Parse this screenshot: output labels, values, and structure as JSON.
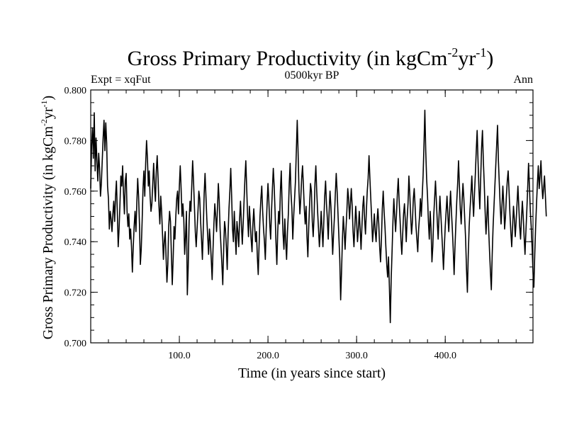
{
  "chart_data": {
    "type": "line",
    "title": "Gross Primary Productivity (in kgCm",
    "title_sup1": "-2",
    "title_mid": "yr",
    "title_sup2": "-1",
    "title_end": ")",
    "subtitle_left": "Expt = xqFut",
    "subtitle_center": "0500kyr BP",
    "subtitle_right": "Ann",
    "xlabel": "Time (in years since start)",
    "ylabel": "Gross Primary Productivity (in kgCm",
    "ylabel_sup1": "-2",
    "ylabel_mid": "yr",
    "ylabel_sup2": "-1",
    "ylabel_end": ")",
    "xlim": [
      0,
      499
    ],
    "ylim": [
      0.7,
      0.8
    ],
    "x_ticks": [
      100,
      200,
      300,
      400
    ],
    "x_tick_labels": [
      "100.0",
      "200.0",
      "300.0",
      "400.0"
    ],
    "y_ticks": [
      0.7,
      0.72,
      0.74,
      0.76,
      0.78,
      0.8
    ],
    "y_tick_labels": [
      "0.700",
      "0.720",
      "0.740",
      "0.760",
      "0.780",
      "0.800"
    ],
    "x_minor_step": 20,
    "y_minor_step": 0.005,
    "line_color": "#000000",
    "series": [
      {
        "name": "GPP",
        "x_start": 0,
        "x_step": 1,
        "values": [
          0.761,
          0.778,
          0.785,
          0.773,
          0.791,
          0.768,
          0.781,
          0.772,
          0.764,
          0.775,
          0.769,
          0.758,
          0.763,
          0.772,
          0.781,
          0.788,
          0.776,
          0.787,
          0.779,
          0.762,
          0.757,
          0.745,
          0.752,
          0.749,
          0.744,
          0.751,
          0.756,
          0.748,
          0.758,
          0.764,
          0.752,
          0.738,
          0.745,
          0.755,
          0.766,
          0.762,
          0.77,
          0.759,
          0.751,
          0.764,
          0.767,
          0.752,
          0.746,
          0.751,
          0.741,
          0.745,
          0.738,
          0.728,
          0.738,
          0.746,
          0.752,
          0.744,
          0.755,
          0.765,
          0.758,
          0.747,
          0.731,
          0.737,
          0.748,
          0.761,
          0.768,
          0.758,
          0.771,
          0.78,
          0.773,
          0.762,
          0.768,
          0.758,
          0.752,
          0.755,
          0.763,
          0.771,
          0.762,
          0.756,
          0.768,
          0.774,
          0.765,
          0.754,
          0.747,
          0.758,
          0.752,
          0.743,
          0.733,
          0.74,
          0.744,
          0.734,
          0.724,
          0.731,
          0.746,
          0.752,
          0.748,
          0.735,
          0.723,
          0.733,
          0.746,
          0.741,
          0.75,
          0.757,
          0.76,
          0.751,
          0.762,
          0.77,
          0.761,
          0.75,
          0.755,
          0.749,
          0.735,
          0.742,
          0.752,
          0.719,
          0.73,
          0.748,
          0.756,
          0.752,
          0.762,
          0.772,
          0.764,
          0.754,
          0.744,
          0.738,
          0.745,
          0.752,
          0.76,
          0.757,
          0.748,
          0.741,
          0.733,
          0.745,
          0.759,
          0.767,
          0.758,
          0.749,
          0.742,
          0.735,
          0.745,
          0.74,
          0.733,
          0.725,
          0.737,
          0.747,
          0.755,
          0.75,
          0.744,
          0.753,
          0.763,
          0.756,
          0.745,
          0.738,
          0.731,
          0.723,
          0.737,
          0.748,
          0.745,
          0.738,
          0.729,
          0.743,
          0.753,
          0.76,
          0.769,
          0.758,
          0.745,
          0.74,
          0.752,
          0.743,
          0.735,
          0.748,
          0.744,
          0.738,
          0.749,
          0.756,
          0.747,
          0.739,
          0.747,
          0.756,
          0.765,
          0.772,
          0.761,
          0.75,
          0.742,
          0.754,
          0.748,
          0.741,
          0.736,
          0.747,
          0.753,
          0.746,
          0.74,
          0.744,
          0.734,
          0.727,
          0.739,
          0.75,
          0.757,
          0.762,
          0.752,
          0.745,
          0.74,
          0.733,
          0.745,
          0.755,
          0.763,
          0.756,
          0.747,
          0.741,
          0.752,
          0.761,
          0.769,
          0.762,
          0.752,
          0.74,
          0.731,
          0.744,
          0.752,
          0.747,
          0.76,
          0.768,
          0.754,
          0.743,
          0.737,
          0.749,
          0.74,
          0.733,
          0.744,
          0.751,
          0.763,
          0.771,
          0.759,
          0.753,
          0.741,
          0.75,
          0.757,
          0.764,
          0.776,
          0.788,
          0.775,
          0.76,
          0.751,
          0.757,
          0.765,
          0.77,
          0.762,
          0.753,
          0.747,
          0.754,
          0.742,
          0.734,
          0.746,
          0.755,
          0.763,
          0.76,
          0.748,
          0.742,
          0.75,
          0.763,
          0.77,
          0.76,
          0.752,
          0.745,
          0.738,
          0.744,
          0.752,
          0.745,
          0.738,
          0.748,
          0.758,
          0.764,
          0.755,
          0.749,
          0.741,
          0.752,
          0.76,
          0.754,
          0.745,
          0.735,
          0.743,
          0.75,
          0.759,
          0.767,
          0.76,
          0.751,
          0.742,
          0.733,
          0.717,
          0.728,
          0.741,
          0.75,
          0.744,
          0.737,
          0.745,
          0.752,
          0.761,
          0.757,
          0.749,
          0.755,
          0.761,
          0.754,
          0.744,
          0.738,
          0.746,
          0.754,
          0.748,
          0.74,
          0.745,
          0.752,
          0.745,
          0.737,
          0.746,
          0.754,
          0.758,
          0.749,
          0.743,
          0.752,
          0.76,
          0.765,
          0.774,
          0.765,
          0.757,
          0.749,
          0.74,
          0.745,
          0.751,
          0.744,
          0.74,
          0.748,
          0.753,
          0.747,
          0.738,
          0.732,
          0.741,
          0.753,
          0.76,
          0.752,
          0.746,
          0.738,
          0.731,
          0.726,
          0.734,
          0.722,
          0.708,
          0.725,
          0.736,
          0.748,
          0.757,
          0.75,
          0.744,
          0.751,
          0.759,
          0.765,
          0.756,
          0.749,
          0.741,
          0.735,
          0.743,
          0.751,
          0.755,
          0.748,
          0.74,
          0.749,
          0.755,
          0.766,
          0.759,
          0.75,
          0.743,
          0.748,
          0.757,
          0.761,
          0.754,
          0.746,
          0.741,
          0.736,
          0.745,
          0.75,
          0.757,
          0.75,
          0.758,
          0.766,
          0.778,
          0.792,
          0.776,
          0.765,
          0.758,
          0.748,
          0.741,
          0.752,
          0.745,
          0.732,
          0.738,
          0.75,
          0.757,
          0.764,
          0.756,
          0.748,
          0.741,
          0.75,
          0.758,
          0.751,
          0.744,
          0.737,
          0.729,
          0.738,
          0.746,
          0.752,
          0.758,
          0.75,
          0.744,
          0.753,
          0.76,
          0.752,
          0.745,
          0.737,
          0.727,
          0.738,
          0.747,
          0.756,
          0.763,
          0.772,
          0.762,
          0.753,
          0.747,
          0.756,
          0.763,
          0.757,
          0.749,
          0.741,
          0.729,
          0.72,
          0.735,
          0.746,
          0.753,
          0.759,
          0.766,
          0.757,
          0.75,
          0.759,
          0.767,
          0.776,
          0.784,
          0.772,
          0.761,
          0.753,
          0.765,
          0.777,
          0.784,
          0.772,
          0.763,
          0.752,
          0.743,
          0.75,
          0.758,
          0.745,
          0.736,
          0.728,
          0.721,
          0.735,
          0.746,
          0.754,
          0.762,
          0.77,
          0.778,
          0.786,
          0.772,
          0.763,
          0.754,
          0.747,
          0.754,
          0.762,
          0.755,
          0.745,
          0.75,
          0.758,
          0.764,
          0.768,
          0.76,
          0.751,
          0.744,
          0.738,
          0.746,
          0.754,
          0.749,
          0.742,
          0.748,
          0.755,
          0.762,
          0.754,
          0.746,
          0.741,
          0.749,
          0.756,
          0.75,
          0.742,
          0.735,
          0.744,
          0.752,
          0.761,
          0.771,
          0.762,
          0.752,
          0.746,
          0.738,
          0.728,
          0.722,
          0.735,
          0.746,
          0.755,
          0.763,
          0.77,
          0.761,
          0.766,
          0.772,
          0.763,
          0.757,
          0.761,
          0.766,
          0.758,
          0.75
        ]
      }
    ]
  }
}
